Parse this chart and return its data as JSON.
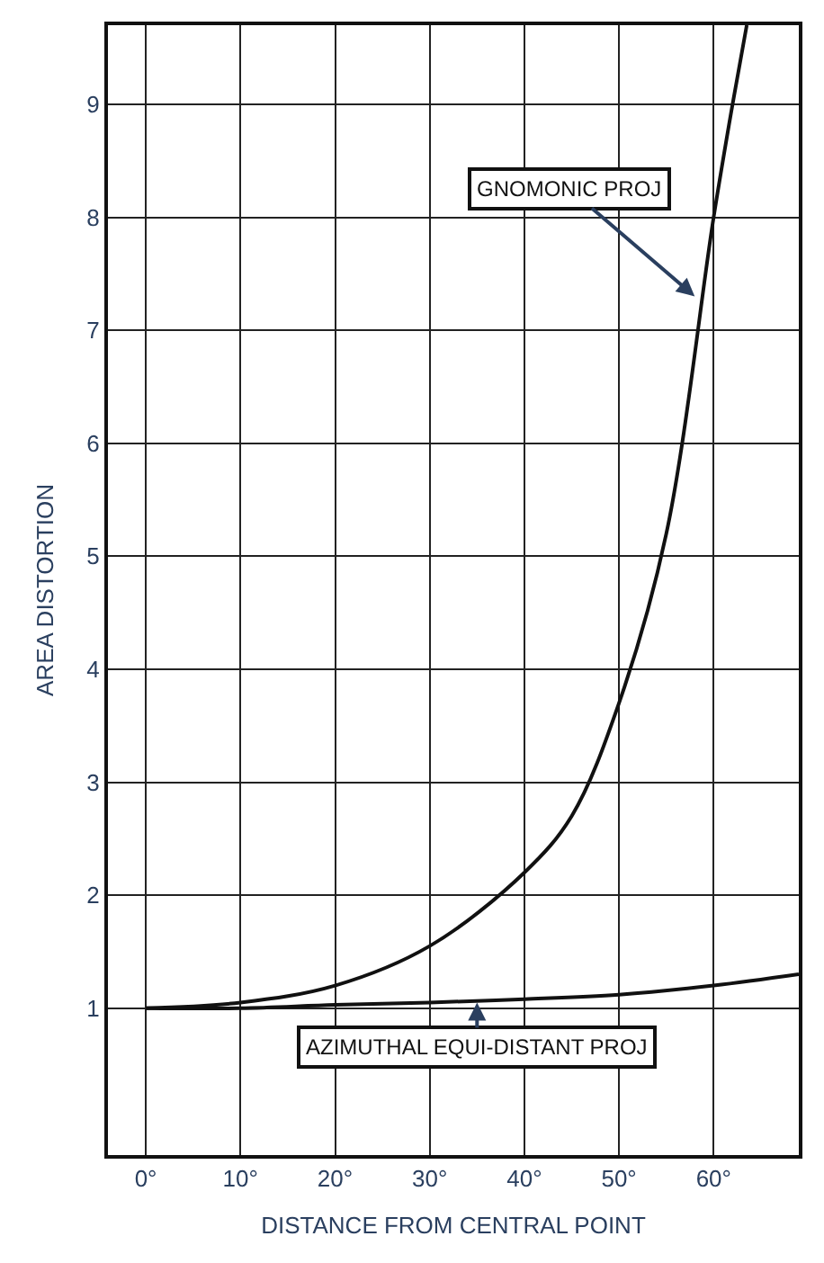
{
  "chart_data": {
    "type": "line",
    "xlabel": "DISTANCE FROM CENTRAL POINT",
    "ylabel": "AREA DISTORTION",
    "xlim": [
      -4,
      69
    ],
    "ylim": [
      -0.3,
      9.7
    ],
    "xticks": [
      {
        "value": 0,
        "label": "0°"
      },
      {
        "value": 10,
        "label": "10°"
      },
      {
        "value": 20,
        "label": "20°"
      },
      {
        "value": 30,
        "label": "30°"
      },
      {
        "value": 40,
        "label": "40°"
      },
      {
        "value": 50,
        "label": "50°"
      },
      {
        "value": 60,
        "label": "60°"
      }
    ],
    "yticks": [
      1,
      2,
      3,
      4,
      5,
      6,
      7,
      8,
      9
    ],
    "grid": true,
    "marker": "none",
    "line_style": "solid",
    "series": [
      {
        "color": "#111111",
        "x": [
          0,
          10,
          20,
          30,
          40,
          45,
          50,
          55,
          60,
          62,
          63.5
        ],
        "values": [
          1,
          1.05,
          1.2,
          1.55,
          2.2,
          2.7,
          3.7,
          5.2,
          8,
          9,
          9.7
        ]
      },
      {
        "color": "#111111",
        "x": [
          0,
          10,
          20,
          30,
          40,
          50,
          60,
          69
        ],
        "values": [
          1,
          1,
          1.03,
          1.05,
          1.08,
          1.12,
          1.2,
          1.3
        ]
      }
    ],
    "annotations": [
      {
        "text": "GNOMONIC PROJ",
        "x": 58,
        "y": 7.3
      },
      {
        "text": "AZIMUTHAL EQUI-DISTANT PROJ",
        "x": 35,
        "y": 1.05
      }
    ]
  }
}
